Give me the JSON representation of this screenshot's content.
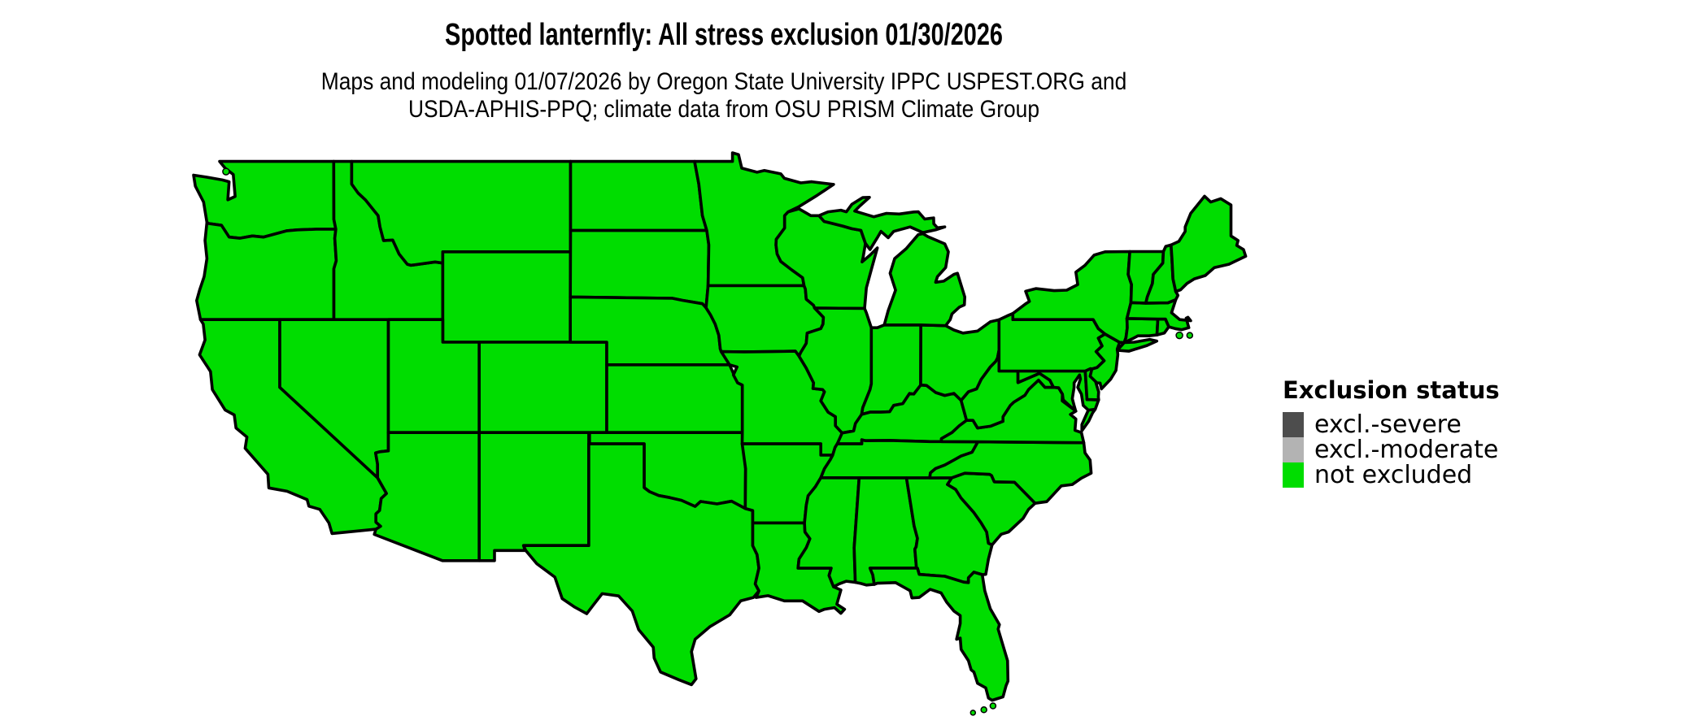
{
  "header": {
    "title": "Spotted lanternfly: All stress exclusion 01/30/2026",
    "subtitle_line1": "Maps and modeling 01/07/2026 by Oregon State University IPPC USPEST.ORG and",
    "subtitle_line2": "USDA-APHIS-PPQ; climate data from OSU PRISM Climate Group"
  },
  "legend": {
    "title": "Exclusion status",
    "items": [
      {
        "label": "excl.-severe",
        "color": "#4d4d4d"
      },
      {
        "label": "excl.-moderate",
        "color": "#b3b3b3"
      },
      {
        "label": "not excluded",
        "color": "#00dd00"
      }
    ]
  },
  "map": {
    "region": "contiguous United States state map",
    "all_visible_status": "not excluded",
    "fill_color": "#00dd00",
    "border_color": "#000000",
    "background_color": "#ffffff"
  }
}
